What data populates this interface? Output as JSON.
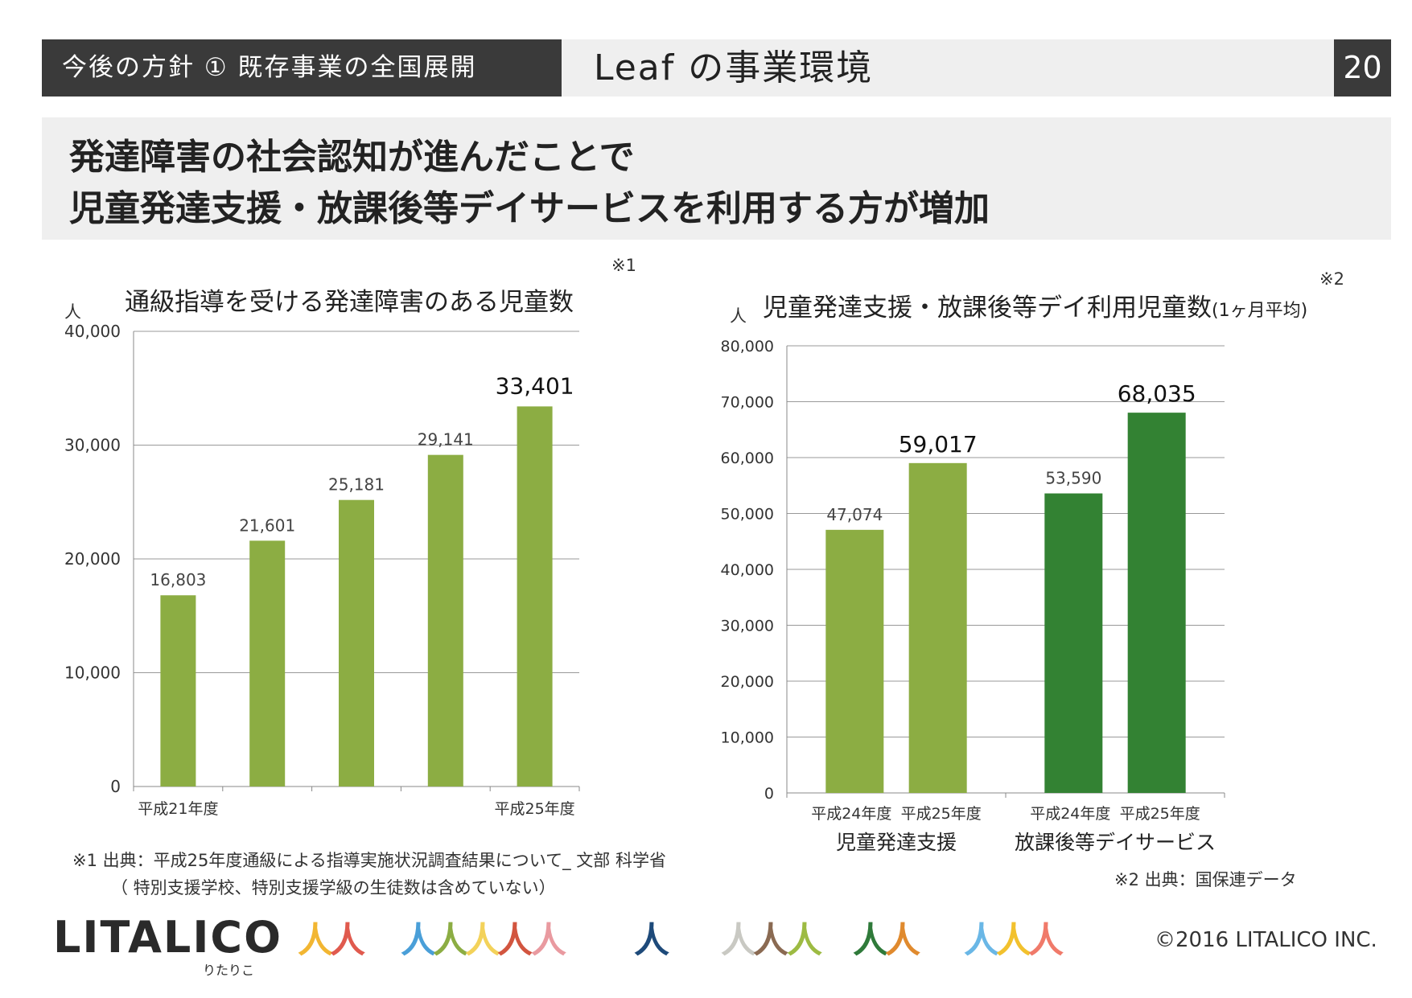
{
  "header": {
    "section": "今後の方針 ① 既存事業の全国展開",
    "title": "Leaf の事業環境",
    "page_number": "20"
  },
  "headline": {
    "line1": "発達障害の社会認知が進んだことで",
    "line2": "児童発達支援・放課後等デイサービスを利用する方が増加"
  },
  "chart_data": [
    {
      "type": "bar",
      "title": "通級指導を受ける発達障害のある児童数",
      "note_mark": "※1",
      "ylabel": "人",
      "ylim": [
        0,
        40000
      ],
      "yticks": [
        "0",
        "10,000",
        "20,000",
        "30,000",
        "40,000"
      ],
      "grid": true,
      "x_labels": [
        "平成21年度",
        "",
        "",
        "",
        "平成25年度"
      ],
      "values": [
        16803,
        21601,
        25181,
        29141,
        33401
      ],
      "value_labels": [
        "16,803",
        "21,601",
        "25,181",
        "29,141",
        "33,401"
      ],
      "highlight_last": true,
      "colors": [
        "#8cad43",
        "#8cad43",
        "#8cad43",
        "#8cad43",
        "#8cad43"
      ]
    },
    {
      "type": "bar",
      "title": "児童発達支援・放課後等デイ利用児童数",
      "title_suffix": "(1ヶ月平均)",
      "note_mark": "※2",
      "ylabel": "人",
      "ylim": [
        0,
        80000
      ],
      "yticks": [
        "0",
        "10,000",
        "20,000",
        "30,000",
        "40,000",
        "50,000",
        "60,000",
        "70,000",
        "80,000"
      ],
      "grid": true,
      "groups": [
        "児童発達支援",
        "放課後等デイサービス"
      ],
      "x_labels": [
        "平成24年度",
        "平成25年度",
        "平成24年度",
        "平成25年度"
      ],
      "values": [
        47074,
        59017,
        53590,
        68035
      ],
      "value_labels": [
        "47,074",
        "59,017",
        "53,590",
        "68,035"
      ],
      "colors": [
        "#8cad43",
        "#8cad43",
        "#338233",
        "#338233"
      ]
    }
  ],
  "notes": {
    "left_line1": "※1 出典：平成25年度通級による指導実施状況調査結果について_ 文部 科学省",
    "left_line2": "（ 特別支援学校、特別支援学級の生徒数は含めていない）",
    "right": "※2 出典：国保連データ"
  },
  "footer": {
    "logo": "LITALICO",
    "logo_sub": "りたりこ",
    "copyright": "©2016 LITALICO INC.",
    "figure_colors": [
      "#f2b632",
      "#e05a4e",
      "#4a9fd8",
      "#8cad43",
      "#f3d25a",
      "#d2553f",
      "#e99aa0",
      "#1e4a7a",
      "#c9c9c3",
      "#8a6a52",
      "#9dbb43",
      "#2f7a3a",
      "#e08a2e",
      "#6ab7e6",
      "#f2c12e",
      "#f07a6a"
    ]
  }
}
